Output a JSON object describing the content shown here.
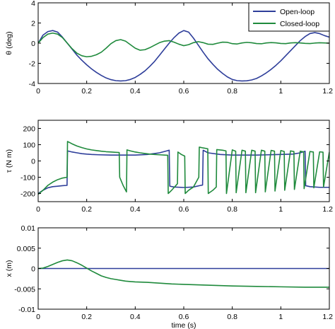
{
  "colors": {
    "open_loop": "#2e3e9a",
    "closed_loop": "#1f8a3c",
    "axes": "#000000",
    "background": "#ffffff"
  },
  "chart_data": [
    {
      "type": "line",
      "title": "",
      "xlabel": "",
      "ylabel": "θ (deg)",
      "xlim": [
        0,
        1.2
      ],
      "ylim": [
        -4,
        4
      ],
      "xticks": [
        "0",
        "0.2",
        "0.4",
        "0.6",
        "0.8",
        "1",
        "1.2"
      ],
      "yticks": [
        "4",
        "2",
        "0",
        "-2",
        "-4"
      ],
      "grid": false,
      "legend": {
        "placement": "top-right",
        "entries": [
          "Open-loop",
          "Closed-loop"
        ]
      },
      "series": [
        {
          "name": "Open-loop",
          "x": [
            0,
            0.02,
            0.04,
            0.06,
            0.08,
            0.1,
            0.12,
            0.14,
            0.16,
            0.18,
            0.2,
            0.22,
            0.24,
            0.26,
            0.28,
            0.3,
            0.32,
            0.34,
            0.36,
            0.38,
            0.4,
            0.42,
            0.44,
            0.46,
            0.48,
            0.5,
            0.52,
            0.54,
            0.56,
            0.58,
            0.6,
            0.62,
            0.64,
            0.66,
            0.68,
            0.7,
            0.72,
            0.74,
            0.76,
            0.78,
            0.8,
            0.82,
            0.84,
            0.86,
            0.88,
            0.9,
            0.92,
            0.94,
            0.96,
            0.98,
            1.0,
            1.02,
            1.04,
            1.06,
            1.08,
            1.1,
            1.12,
            1.14,
            1.16,
            1.18,
            1.2
          ],
          "y": [
            0,
            0.8,
            1.15,
            1.25,
            1.1,
            0.6,
            0.0,
            -0.6,
            -1.2,
            -1.7,
            -2.15,
            -2.55,
            -2.9,
            -3.2,
            -3.45,
            -3.62,
            -3.72,
            -3.75,
            -3.72,
            -3.6,
            -3.4,
            -3.1,
            -2.75,
            -2.3,
            -1.8,
            -1.2,
            -0.6,
            0.0,
            0.55,
            1.0,
            1.25,
            1.1,
            0.5,
            -0.2,
            -0.9,
            -1.55,
            -2.1,
            -2.6,
            -3.0,
            -3.35,
            -3.6,
            -3.72,
            -3.75,
            -3.73,
            -3.65,
            -3.5,
            -3.25,
            -2.95,
            -2.6,
            -2.2,
            -1.75,
            -1.25,
            -0.75,
            -0.25,
            0.25,
            0.65,
            0.95,
            1.05,
            0.95,
            0.75,
            0.6
          ]
        },
        {
          "name": "Closed-loop",
          "x": [
            0,
            0.02,
            0.04,
            0.06,
            0.08,
            0.1,
            0.12,
            0.14,
            0.16,
            0.18,
            0.2,
            0.22,
            0.24,
            0.26,
            0.28,
            0.3,
            0.32,
            0.34,
            0.36,
            0.38,
            0.4,
            0.42,
            0.44,
            0.46,
            0.48,
            0.5,
            0.52,
            0.54,
            0.56,
            0.58,
            0.6,
            0.62,
            0.64,
            0.66,
            0.68,
            0.7,
            0.72,
            0.74,
            0.76,
            0.78,
            0.8,
            0.82,
            0.84,
            0.86,
            0.88,
            0.9,
            0.92,
            0.94,
            0.96,
            0.98,
            1.0,
            1.02,
            1.04,
            1.06,
            1.08,
            1.1,
            1.12,
            1.14,
            1.16,
            1.18,
            1.2
          ],
          "y": [
            0,
            0.55,
            0.9,
            1.0,
            0.9,
            0.55,
            0.0,
            -0.55,
            -1.0,
            -1.25,
            -1.35,
            -1.3,
            -1.15,
            -0.9,
            -0.5,
            -0.05,
            0.25,
            0.35,
            0.2,
            -0.15,
            -0.5,
            -0.7,
            -0.65,
            -0.45,
            -0.2,
            0.05,
            0.2,
            0.25,
            0.1,
            -0.1,
            -0.25,
            -0.15,
            0.05,
            0.15,
            0.05,
            -0.1,
            -0.12,
            0.0,
            0.1,
            0.08,
            -0.05,
            -0.08,
            0.02,
            0.08,
            0.04,
            -0.04,
            -0.06,
            0.02,
            0.06,
            0.03,
            -0.03,
            -0.05,
            0.02,
            0.05,
            0.02,
            -0.02,
            -0.04,
            0.01,
            0.04,
            0.02,
            0.0
          ]
        }
      ]
    },
    {
      "type": "line",
      "title": "",
      "xlabel": "",
      "ylabel": "τ (N m)",
      "xlim": [
        0,
        1.2
      ],
      "ylim": [
        -250,
        250
      ],
      "xticks": [
        "0",
        "0.2",
        "0.4",
        "0.6",
        "0.8",
        "1",
        "1.2"
      ],
      "yticks": [
        "200",
        "100",
        "0",
        "-100",
        "-200"
      ],
      "grid": false,
      "series": [
        {
          "name": "Open-loop",
          "x": [
            0,
            0.02,
            0.04,
            0.06,
            0.08,
            0.1,
            0.119,
            0.121,
            0.14,
            0.16,
            0.18,
            0.2,
            0.22,
            0.25,
            0.3,
            0.35,
            0.4,
            0.45,
            0.5,
            0.53,
            0.54,
            0.5425,
            0.56,
            0.6,
            0.64,
            0.67,
            0.6775,
            0.68,
            0.7,
            0.75,
            0.8,
            0.85,
            0.9,
            0.95,
            1.0,
            1.05,
            1.08,
            1.1,
            1.1025,
            1.12,
            1.16,
            1.2
          ],
          "y": [
            -200,
            -180,
            -165,
            -158,
            -155,
            -152,
            -150,
            62,
            55,
            50,
            45,
            42,
            40,
            38,
            36,
            36,
            36,
            40,
            50,
            62,
            66,
            -155,
            -160,
            -163,
            -160,
            -150,
            -148,
            66,
            50,
            40,
            36,
            36,
            36,
            38,
            40,
            42,
            50,
            60,
            -152,
            -158,
            -162,
            -162
          ]
        },
        {
          "name": "Closed-loop",
          "x": [
            0,
            0.02,
            0.04,
            0.06,
            0.08,
            0.1,
            0.119,
            0.121,
            0.14,
            0.16,
            0.18,
            0.2,
            0.22,
            0.24,
            0.26,
            0.28,
            0.3,
            0.32,
            0.334,
            0.336,
            0.35,
            0.364,
            0.366,
            0.38,
            0.4,
            0.42,
            0.44,
            0.46,
            0.48,
            0.5,
            0.52,
            0.534,
            0.536,
            0.55,
            0.574,
            0.576,
            0.59,
            0.604,
            0.606,
            0.62,
            0.64,
            0.662,
            0.664,
            0.68,
            0.699,
            0.701,
            0.72,
            0.734,
            0.736,
            0.76,
            0.774,
            0.776,
            0.8,
            0.814,
            0.816,
            0.84,
            0.854,
            0.856,
            0.88,
            0.894,
            0.896,
            0.92,
            0.934,
            0.936,
            0.96,
            0.974,
            0.976,
            1.0,
            1.014,
            1.016,
            1.04,
            1.054,
            1.056,
            1.08,
            1.094,
            1.096,
            1.12,
            1.134,
            1.136,
            1.16,
            1.174,
            1.176,
            1.2
          ],
          "y": [
            -205,
            -180,
            -150,
            -130,
            -115,
            -105,
            -100,
            120,
            105,
            92,
            82,
            74,
            68,
            64,
            60,
            57,
            55,
            53,
            52,
            -100,
            -150,
            -190,
            68,
            62,
            55,
            50,
            46,
            42,
            40,
            38,
            36,
            35,
            -200,
            -180,
            -140,
            55,
            40,
            30,
            -200,
            -180,
            -160,
            -100,
            85,
            80,
            75,
            -200,
            -180,
            -160,
            70,
            66,
            62,
            -200,
            68,
            60,
            -195,
            66,
            60,
            -195,
            66,
            60,
            -195,
            66,
            60,
            -190,
            65,
            60,
            -185,
            64,
            58,
            -180,
            62,
            58,
            -175,
            60,
            56,
            -170,
            58,
            55,
            -165,
            56,
            54,
            -160,
            55
          ]
        }
      ]
    },
    {
      "type": "line",
      "title": "",
      "xlabel": "time (s)",
      "ylabel": "x (m)",
      "xlim": [
        0,
        1.2
      ],
      "ylim": [
        -0.01,
        0.01
      ],
      "xticks": [
        "0",
        "0.2",
        "0.4",
        "0.6",
        "0.8",
        "1",
        "1.2"
      ],
      "yticks": [
        "0.01",
        "0.005",
        "0",
        "-0.005",
        "-0.01"
      ],
      "grid": false,
      "series": [
        {
          "name": "Open-loop",
          "x": [
            0,
            1.2
          ],
          "y": [
            0,
            0
          ]
        },
        {
          "name": "Closed-loop",
          "x": [
            0,
            0.02,
            0.04,
            0.06,
            0.08,
            0.1,
            0.12,
            0.14,
            0.16,
            0.18,
            0.2,
            0.22,
            0.24,
            0.26,
            0.28,
            0.3,
            0.32,
            0.34,
            0.36,
            0.38,
            0.4,
            0.45,
            0.5,
            0.55,
            0.6,
            0.7,
            0.8,
            0.9,
            1.0,
            1.1,
            1.2
          ],
          "y": [
            0,
            0.0001,
            0.0005,
            0.001,
            0.0015,
            0.0019,
            0.0021,
            0.0019,
            0.0014,
            0.0008,
            0.0001,
            -0.0006,
            -0.0012,
            -0.0018,
            -0.0022,
            -0.0025,
            -0.0027,
            -0.0029,
            -0.0031,
            -0.0032,
            -0.0033,
            -0.0034,
            -0.0036,
            -0.0038,
            -0.0039,
            -0.0041,
            -0.0043,
            -0.0044,
            -0.0045,
            -0.0046,
            -0.0046
          ]
        }
      ]
    }
  ]
}
